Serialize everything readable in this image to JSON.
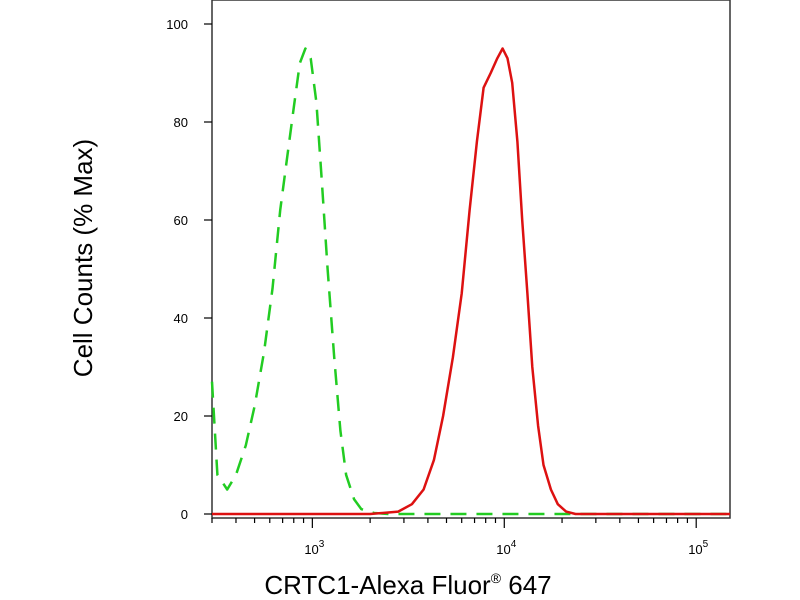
{
  "chart_data": {
    "type": "line",
    "xlabel": "CRTC1-Alexa Fluor",
    "xlabel_superscript": "®",
    "xlabel_suffix": " 647",
    "ylabel": "Cell Counts (% Max)",
    "x_scale": "log",
    "xlim": [
      300,
      150000
    ],
    "ylim": [
      0,
      100
    ],
    "y_ticks": [
      {
        "value": 0,
        "label": "0"
      },
      {
        "value": 20,
        "label": "20"
      },
      {
        "value": 40,
        "label": "40"
      },
      {
        "value": 60,
        "label": "60"
      },
      {
        "value": 80,
        "label": "80"
      },
      {
        "value": 100,
        "label": "100"
      }
    ],
    "x_ticks": [
      {
        "value": 1000,
        "base": "10",
        "exp": "3"
      },
      {
        "value": 10000,
        "base": "10",
        "exp": "4"
      },
      {
        "value": 100000,
        "base": "10",
        "exp": "5"
      }
    ],
    "grid": false,
    "series": [
      {
        "color": "#22cc22",
        "dash": "dashed",
        "x": [
          300,
          320,
          360,
          400,
          450,
          500,
          560,
          620,
          680,
          740,
          800,
          860,
          920,
          980,
          1050,
          1120,
          1200,
          1300,
          1400,
          1500,
          1650,
          1800,
          1950,
          2100,
          2500,
          5000,
          20000,
          100000,
          150000
        ],
        "y": [
          27,
          8,
          5,
          8,
          14,
          22,
          33,
          46,
          62,
          73,
          83,
          92,
          95,
          93,
          84,
          68,
          50,
          32,
          17,
          8,
          3,
          1,
          0.5,
          0.2,
          0,
          0,
          0,
          0,
          0
        ]
      },
      {
        "color": "#dd1111",
        "dash": "solid",
        "x": [
          300,
          1000,
          2000,
          2800,
          3300,
          3800,
          4300,
          4800,
          5400,
          6000,
          6600,
          7200,
          7800,
          8500,
          9200,
          9800,
          10400,
          11000,
          11700,
          12400,
          13200,
          14000,
          15000,
          16000,
          17500,
          19000,
          21000,
          23500,
          26000,
          30000,
          60000,
          150000
        ],
        "y": [
          0,
          0,
          0,
          0.5,
          2,
          5,
          11,
          20,
          32,
          45,
          62,
          76,
          87,
          90,
          93,
          95,
          93,
          88,
          76,
          60,
          45,
          30,
          18,
          10,
          5,
          2,
          0.5,
          0,
          0,
          0,
          0,
          0
        ]
      }
    ]
  }
}
